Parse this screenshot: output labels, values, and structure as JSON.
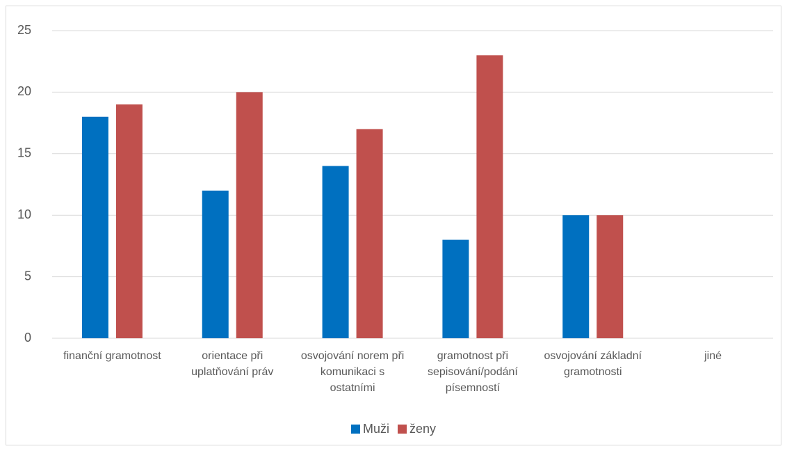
{
  "chart_data": {
    "type": "bar",
    "categories": [
      "finanční gramotnost",
      "orientace při uplatňování práv",
      "osvojování norem při komunikaci s ostatními",
      "gramotnost při sepisování/podání písemností",
      "osvojování základní gramotnosti",
      "jiné"
    ],
    "series": [
      {
        "name": "Muži",
        "color": "#0070c0",
        "values": [
          18,
          12,
          14,
          8,
          10,
          0
        ]
      },
      {
        "name": "ženy",
        "color": "#c0504d",
        "values": [
          19,
          20,
          17,
          23,
          10,
          0
        ]
      }
    ],
    "ylim": [
      0,
      25
    ],
    "yticks": [
      0,
      5,
      10,
      15,
      20,
      25
    ],
    "grid": true,
    "legend": "bottom"
  }
}
